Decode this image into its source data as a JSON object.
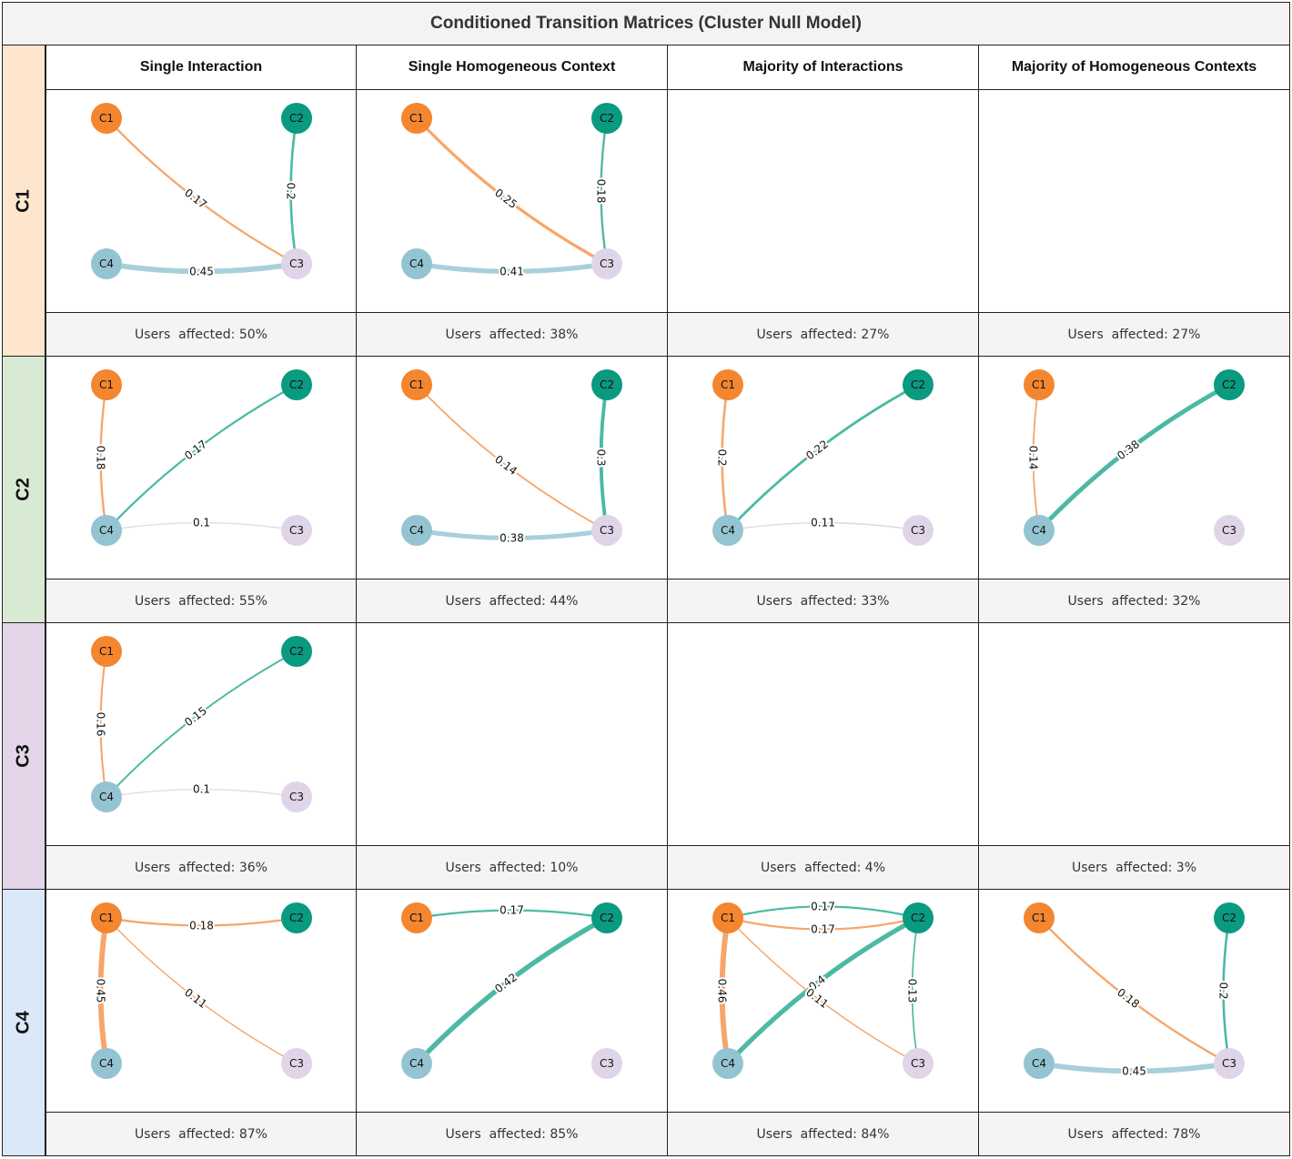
{
  "title": "Conditioned Transition Matrices (Cluster Null Model)",
  "columns": [
    "Single Interaction",
    "Single Homogeneous Context",
    "Majority of Interactions",
    "Majority of Homogeneous Contexts"
  ],
  "rows": [
    "C1",
    "C2",
    "C3",
    "C4"
  ],
  "colors": {
    "C1": "#f4862f",
    "C2": "#0a9a80",
    "C3": "#e0d5e8",
    "C4": "#94c4d2",
    "edge_C1": "#f6a66a",
    "edge_C2": "#4cb9a4",
    "edge_C3": "#e2d6ea",
    "edge_C4": "#a8d0da",
    "row_C1": "#fee5cd",
    "row_C2": "#d9ead4",
    "row_C3": "#e4d6e8",
    "row_C4": "#dae8fa"
  },
  "node_labels": [
    "C1",
    "C2",
    "C3",
    "C4"
  ],
  "chart_data": {
    "type": "network-grid",
    "cells": [
      {
        "row": "C1",
        "col": "Single Interaction",
        "users_affected": "Users  affected: 50%",
        "edges": [
          {
            "from": "C1",
            "to": "C3",
            "w": 0.17,
            "label": "0.17"
          },
          {
            "from": "C2",
            "to": "C3",
            "w": 0.2,
            "label": "0.2"
          },
          {
            "from": "C4",
            "to": "C3",
            "w": 0.45,
            "label": "0.45"
          }
        ]
      },
      {
        "row": "C1",
        "col": "Single Homogeneous Context",
        "users_affected": "Users  affected: 38%",
        "edges": [
          {
            "from": "C1",
            "to": "C3",
            "w": 0.25,
            "label": "0.25"
          },
          {
            "from": "C2",
            "to": "C3",
            "w": 0.18,
            "label": "0.18"
          },
          {
            "from": "C4",
            "to": "C3",
            "w": 0.41,
            "label": "0.41"
          }
        ]
      },
      {
        "row": "C1",
        "col": "Majority of Interactions",
        "users_affected": "Users  affected: 27%",
        "edges": []
      },
      {
        "row": "C1",
        "col": "Majority of Homogeneous Contexts",
        "users_affected": "Users  affected: 27%",
        "edges": []
      },
      {
        "row": "C2",
        "col": "Single Interaction",
        "users_affected": "Users  affected: 55%",
        "edges": [
          {
            "from": "C1",
            "to": "C4",
            "w": 0.18,
            "label": "0.18"
          },
          {
            "from": "C2",
            "to": "C4",
            "w": 0.17,
            "label": "0.17"
          },
          {
            "from": "C3",
            "to": "C4",
            "w": 0.1,
            "label": "0.1"
          }
        ]
      },
      {
        "row": "C2",
        "col": "Single Homogeneous Context",
        "users_affected": "Users  affected: 44%",
        "edges": [
          {
            "from": "C1",
            "to": "C3",
            "w": 0.14,
            "label": "0.14"
          },
          {
            "from": "C2",
            "to": "C3",
            "w": 0.3,
            "label": "0.3"
          },
          {
            "from": "C4",
            "to": "C3",
            "w": 0.38,
            "label": "0.38"
          }
        ]
      },
      {
        "row": "C2",
        "col": "Majority of Interactions",
        "users_affected": "Users  affected: 33%",
        "edges": [
          {
            "from": "C1",
            "to": "C4",
            "w": 0.2,
            "label": "0.2"
          },
          {
            "from": "C2",
            "to": "C4",
            "w": 0.22,
            "label": "0.22"
          },
          {
            "from": "C3",
            "to": "C4",
            "w": 0.11,
            "label": "0.11"
          }
        ]
      },
      {
        "row": "C2",
        "col": "Majority of Homogeneous Contexts",
        "users_affected": "Users  affected: 32%",
        "edges": [
          {
            "from": "C1",
            "to": "C4",
            "w": 0.14,
            "label": "0.14"
          },
          {
            "from": "C2",
            "to": "C4",
            "w": 0.38,
            "label": "0.38"
          }
        ]
      },
      {
        "row": "C3",
        "col": "Single Interaction",
        "users_affected": "Users  affected: 36%",
        "edges": [
          {
            "from": "C1",
            "to": "C4",
            "w": 0.16,
            "label": "0.16"
          },
          {
            "from": "C2",
            "to": "C4",
            "w": 0.15,
            "label": "0.15"
          },
          {
            "from": "C3",
            "to": "C4",
            "w": 0.1,
            "label": "0.1"
          }
        ]
      },
      {
        "row": "C3",
        "col": "Single Homogeneous Context",
        "users_affected": "Users  affected: 10%",
        "edges": []
      },
      {
        "row": "C3",
        "col": "Majority of Interactions",
        "users_affected": "Users  affected: 4%",
        "edges": []
      },
      {
        "row": "C3",
        "col": "Majority of Homogeneous Contexts",
        "users_affected": "Users  affected: 3%",
        "edges": []
      },
      {
        "row": "C4",
        "col": "Single Interaction",
        "users_affected": "Users  affected: 87%",
        "edges": [
          {
            "from": "C1",
            "to": "C2",
            "w": 0.18,
            "label": "0.18"
          },
          {
            "from": "C1",
            "to": "C3",
            "w": 0.11,
            "label": "0.11"
          },
          {
            "from": "C1",
            "to": "C4",
            "w": 0.45,
            "label": "0.45"
          }
        ]
      },
      {
        "row": "C4",
        "col": "Single Homogeneous Context",
        "users_affected": "Users  affected: 85%",
        "edges": [
          {
            "from": "C2",
            "to": "C1",
            "w": 0.17,
            "label": "0.17"
          },
          {
            "from": "C2",
            "to": "C4",
            "w": 0.42,
            "label": "0.42"
          }
        ]
      },
      {
        "row": "C4",
        "col": "Majority of Interactions",
        "users_affected": "Users  affected: 84%",
        "edges": [
          {
            "from": "C1",
            "to": "C2",
            "w": 0.17,
            "label": "0.17"
          },
          {
            "from": "C2",
            "to": "C1",
            "w": 0.17,
            "label": "0.17"
          },
          {
            "from": "C1",
            "to": "C4",
            "w": 0.46,
            "label": "0.46"
          },
          {
            "from": "C2",
            "to": "C4",
            "w": 0.4,
            "label": "0.4"
          },
          {
            "from": "C1",
            "to": "C3",
            "w": 0.11,
            "label": "0.11"
          },
          {
            "from": "C2",
            "to": "C3",
            "w": 0.13,
            "label": "0.13"
          }
        ]
      },
      {
        "row": "C4",
        "col": "Majority of Homogeneous Contexts",
        "users_affected": "Users  affected: 78%",
        "edges": [
          {
            "from": "C1",
            "to": "C3",
            "w": 0.18,
            "label": "0.18"
          },
          {
            "from": "C2",
            "to": "C3",
            "w": 0.2,
            "label": "0.2"
          },
          {
            "from": "C4",
            "to": "C3",
            "w": 0.45,
            "label": "0.45"
          }
        ]
      }
    ]
  }
}
